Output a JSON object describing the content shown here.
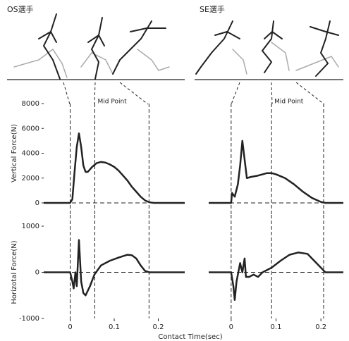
{
  "xlabel": "Contact Time(sec)",
  "chart_data": [
    {
      "type": "line",
      "title": "OS選手",
      "annotation": "Mid Point",
      "ylabel": "Vertical Force(N)",
      "x": [
        -0.06,
        0,
        0.005,
        0.01,
        0.015,
        0.02,
        0.025,
        0.03,
        0.035,
        0.04,
        0.05,
        0.06,
        0.07,
        0.08,
        0.09,
        0.1,
        0.11,
        0.12,
        0.13,
        0.14,
        0.15,
        0.16,
        0.17,
        0.18,
        0.19,
        0.26
      ],
      "series": [
        {
          "color": "#222222",
          "values": [
            0,
            0,
            300,
            2500,
            4500,
            5600,
            4500,
            3000,
            2500,
            2500,
            2900,
            3200,
            3300,
            3250,
            3100,
            2900,
            2600,
            2200,
            1800,
            1300,
            900,
            500,
            200,
            50,
            0,
            0
          ]
        }
      ],
      "contact_lines": [
        0,
        0.056,
        0.179
      ],
      "xlim": [
        -0.06,
        0.26
      ],
      "ylim": [
        0,
        8000
      ],
      "yticks": [
        0,
        2000,
        4000,
        6000,
        8000
      ]
    },
    {
      "type": "line",
      "title": "SE選手",
      "annotation": "Mid Point",
      "x": [
        -0.05,
        0,
        0.002,
        0.008,
        0.015,
        0.02,
        0.025,
        0.03,
        0.035,
        0.045,
        0.06,
        0.08,
        0.09,
        0.1,
        0.12,
        0.14,
        0.16,
        0.18,
        0.2,
        0.21,
        0.25
      ],
      "series": [
        {
          "color": "#222222",
          "values": [
            0,
            0,
            800,
            500,
            1500,
            3000,
            5000,
            3500,
            2000,
            2100,
            2200,
            2400,
            2400,
            2300,
            2000,
            1500,
            900,
            400,
            80,
            0,
            0
          ]
        }
      ],
      "contact_lines": [
        0,
        0.09,
        0.206
      ],
      "xlim": [
        -0.05,
        0.25
      ],
      "ylim": [
        0,
        8000
      ]
    },
    {
      "type": "line",
      "ylabel": "Horizotal Force(N)",
      "x": [
        -0.06,
        0,
        0.005,
        0.008,
        0.012,
        0.015,
        0.02,
        0.025,
        0.03,
        0.035,
        0.045,
        0.055,
        0.07,
        0.09,
        0.11,
        0.13,
        0.14,
        0.15,
        0.16,
        0.17,
        0.18,
        0.26
      ],
      "series": [
        {
          "color": "#222222",
          "values": [
            0,
            0,
            -200,
            -350,
            0,
            -300,
            700,
            -200,
            -450,
            -500,
            -300,
            -50,
            150,
            250,
            320,
            380,
            370,
            300,
            150,
            30,
            0,
            0
          ]
        }
      ],
      "contact_lines": [
        0,
        0.056,
        0.179
      ],
      "xlim": [
        -0.06,
        0.26
      ],
      "ylim": [
        -1000,
        1000
      ],
      "yticks": [
        -1000,
        0,
        1000
      ],
      "xticks": [
        0,
        0.1,
        0.2
      ]
    },
    {
      "type": "line",
      "x": [
        -0.05,
        0,
        0.005,
        0.008,
        0.012,
        0.02,
        0.025,
        0.03,
        0.033,
        0.04,
        0.05,
        0.06,
        0.07,
        0.09,
        0.11,
        0.13,
        0.15,
        0.17,
        0.19,
        0.21,
        0.25
      ],
      "series": [
        {
          "color": "#222222",
          "values": [
            0,
            0,
            -300,
            -600,
            -200,
            200,
            0,
            300,
            -100,
            -100,
            -50,
            -100,
            0,
            100,
            250,
            380,
            430,
            400,
            200,
            0,
            0
          ]
        }
      ],
      "contact_lines": [
        0,
        0.09,
        0.206
      ],
      "xlim": [
        -0.05,
        0.25
      ],
      "ylim": [
        -1000,
        1000
      ],
      "xticks": [
        0,
        0.1,
        0.2
      ]
    }
  ]
}
